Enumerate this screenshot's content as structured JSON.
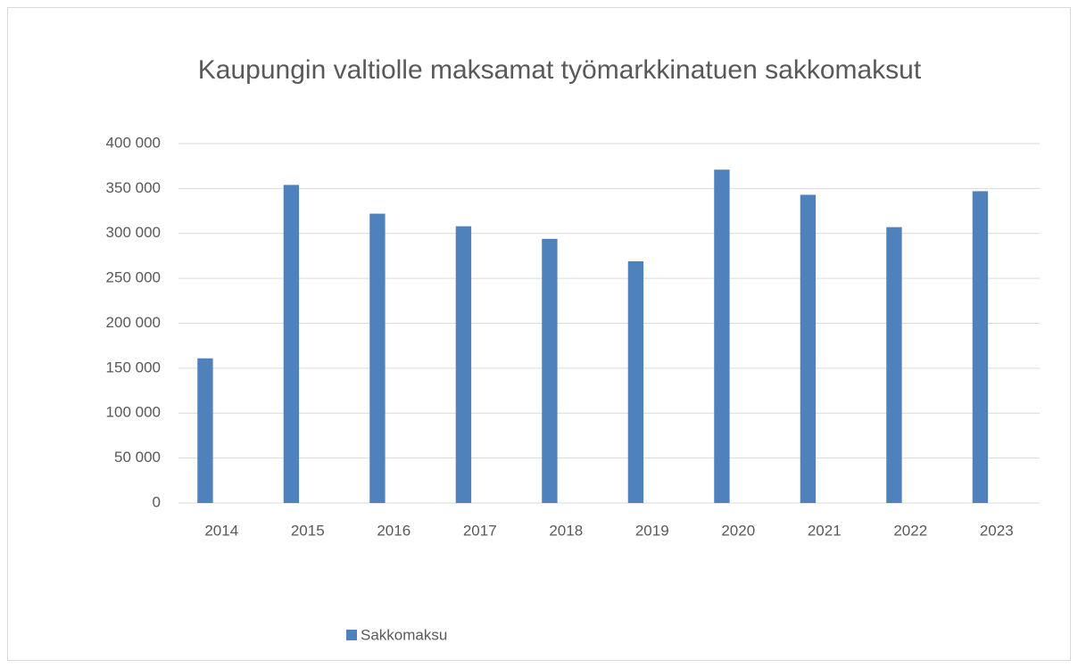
{
  "chart_data": {
    "type": "bar",
    "title": "Kaupungin valtiolle maksamat työmarkkinatuen sakkomaksut",
    "categories": [
      "2014",
      "2015",
      "2016",
      "2017",
      "2018",
      "2019",
      "2020",
      "2021",
      "2022",
      "2023"
    ],
    "series": [
      {
        "name": "Sakkomaksu",
        "color": "#4f81bd",
        "values": [
          161000,
          354000,
          322000,
          308000,
          294000,
          269000,
          371000,
          343000,
          307000,
          347000
        ]
      }
    ],
    "ylim": [
      0,
      400000
    ],
    "yticks": [
      0,
      {
        "value": 50000,
        "label": "50 000"
      },
      {
        "value": 100000,
        "label": "100 000"
      },
      {
        "value": 150000,
        "label": "150 000"
      },
      {
        "value": 200000,
        "label": "200 000"
      },
      {
        "value": 250000,
        "label": "250 000"
      },
      {
        "value": 300000,
        "label": "300 000"
      },
      {
        "value": 350000,
        "label": "350 000"
      },
      {
        "value": 400000,
        "label": "400 000"
      }
    ],
    "grid": true,
    "legend": "bottom"
  }
}
